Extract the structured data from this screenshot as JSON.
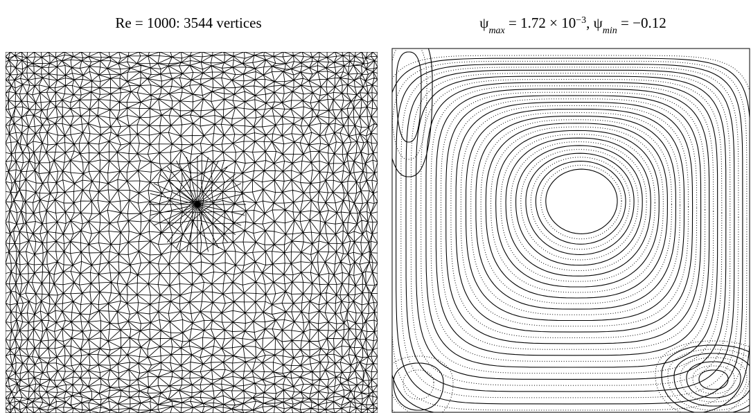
{
  "figures": [
    {
      "caption": [
        {
          "text": "Re = 1000: 3544 vertices",
          "style": "normal"
        }
      ]
    },
    {
      "caption": [
        {
          "text": "ψ",
          "style": "normal"
        },
        {
          "text": "max",
          "style": "sub"
        },
        {
          "text": " = 1.72 × 10",
          "style": "normal"
        },
        {
          "text": "−3",
          "style": "sup"
        },
        {
          "text": ", ψ",
          "style": "normal"
        },
        {
          "text": "min",
          "style": "sub"
        },
        {
          "text": " = −0.12",
          "style": "normal"
        }
      ]
    }
  ]
}
